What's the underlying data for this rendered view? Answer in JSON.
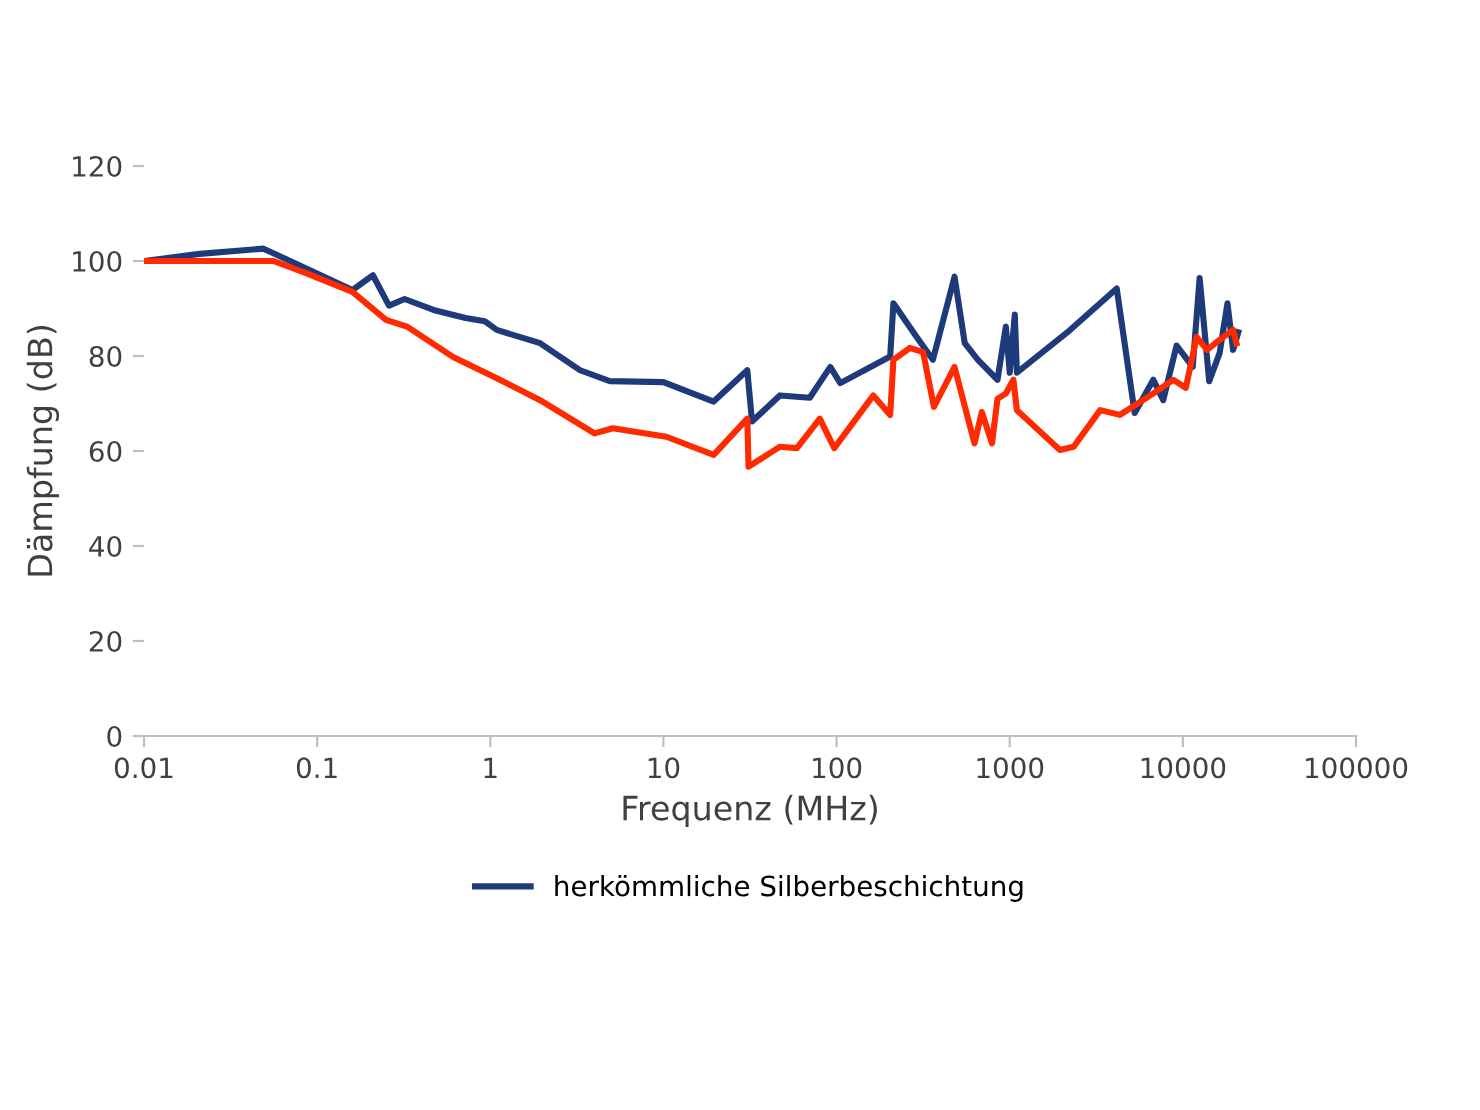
{
  "chart_data": {
    "type": "line",
    "xlabel": "Frequenz (MHz)",
    "ylabel": "Dämpfung (dB)",
    "log": "x",
    "xlim": [
      0.01,
      100000
    ],
    "xticks": [
      {
        "value": 0.01,
        "label": "0.01"
      },
      {
        "value": 0.1,
        "label": "0.1"
      },
      {
        "value": 1,
        "label": "1"
      },
      {
        "value": 10,
        "label": "10"
      },
      {
        "value": 100,
        "label": "100"
      },
      {
        "value": 1000,
        "label": "1000"
      },
      {
        "value": 10000,
        "label": "10000"
      },
      {
        "value": 100000,
        "label": "100000"
      }
    ],
    "ylim": [
      0,
      120
    ],
    "yticks": [
      0,
      20,
      40,
      60,
      80,
      100,
      120
    ],
    "grid": false,
    "legend": "bottom",
    "marker": "none",
    "line_style": "solid",
    "series": [
      {
        "name": "herkömmliche Silberbeschichtung",
        "color": "#1f3a7a",
        "x": [
          0.01,
          0.021,
          0.049,
          0.16,
          0.21,
          0.26,
          0.32,
          0.47,
          0.72,
          0.93,
          1.09,
          1.94,
          3.3,
          4.9,
          10,
          19.5,
          30.5,
          32.5,
          47,
          70,
          92,
          105,
          204,
          213,
          290,
          360,
          480,
          550,
          655,
          850,
          950,
          1000,
          1070,
          1100,
          2140,
          4150,
          5270,
          6750,
          7700,
          9200,
          11400,
          12500,
          14200,
          16300,
          18100,
          19500,
          20900
        ],
        "values": [
          100,
          101.5,
          102.6,
          93.9,
          97,
          90.6,
          92,
          89.7,
          88,
          87.3,
          85.5,
          82.7,
          77,
          74.7,
          74.5,
          70.4,
          77,
          66.2,
          71.7,
          71.2,
          77.7,
          74.3,
          79.9,
          91.1,
          84,
          79.2,
          96.7,
          82.7,
          79.2,
          75,
          86.2,
          76.5,
          88.7,
          76.5,
          84.9,
          94.2,
          68,
          75,
          70.7,
          82.2,
          77.7,
          96.4,
          74.7,
          80.6,
          91.1,
          81.3,
          85
        ]
      },
      {
        "color": "#ff2a00",
        "x": [
          0.01,
          0.056,
          0.087,
          0.16,
          0.25,
          0.33,
          0.61,
          1.04,
          1.94,
          4.0,
          5.1,
          10.4,
          19.5,
          30.5,
          31,
          47,
          59,
          80,
          97,
          163,
          204,
          213,
          265,
          316,
          365,
          480,
          626,
          690,
          790,
          850,
          950,
          1050,
          1100,
          1950,
          2340,
          3330,
          4330,
          6750,
          8800,
          10400,
          12000,
          13800,
          16300,
          19500,
          20400
        ],
        "values": [
          100,
          100,
          97.4,
          93.5,
          87.6,
          86.2,
          79.8,
          75.7,
          70.7,
          63.7,
          64.8,
          63,
          59.2,
          66.8,
          56.7,
          60.9,
          60.6,
          66.8,
          60.6,
          71.7,
          67.6,
          79.2,
          81.7,
          80.8,
          69.3,
          77.7,
          61.6,
          68.2,
          61.6,
          71,
          72.1,
          75,
          68.6,
          60.2,
          60.9,
          68.6,
          67.6,
          72.1,
          75,
          73.3,
          84,
          81.3,
          83.4,
          85.5,
          82.7
        ]
      }
    ]
  }
}
